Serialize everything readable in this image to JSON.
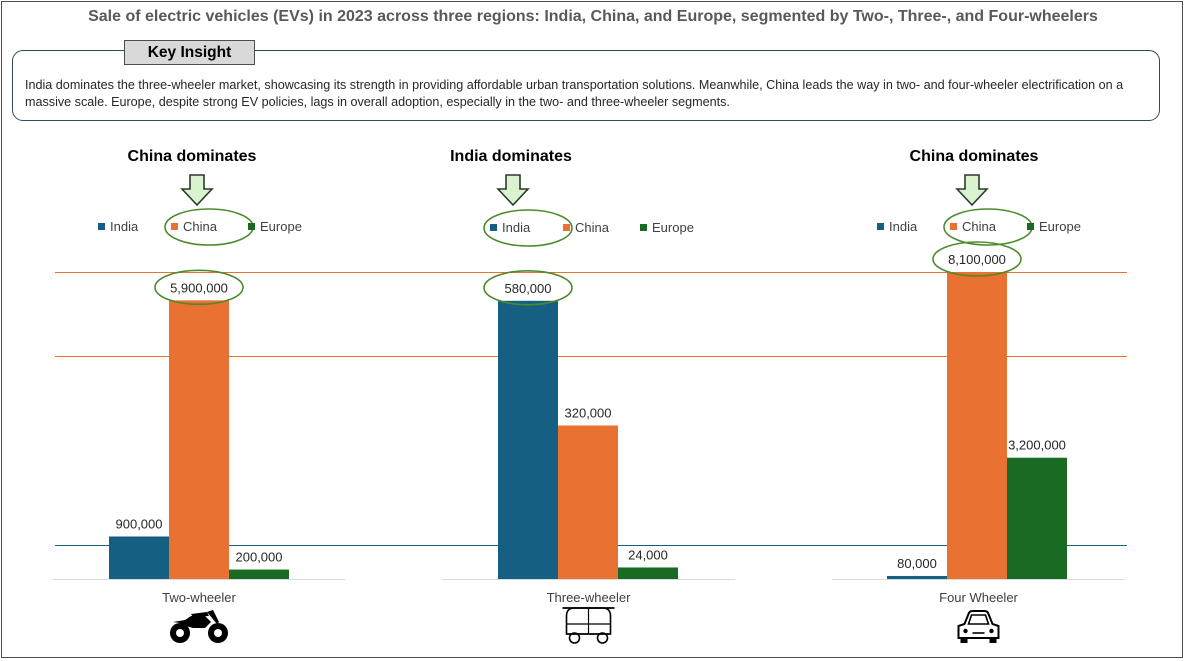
{
  "title": "Sale of electric vehicles (EVs) in 2023 across three regions: India, China, and Europe, segmented by Two-, Three-, and Four-wheelers",
  "insight": {
    "label": "Key Insight",
    "text": "India dominates the three-wheeler market, showcasing its strength in providing affordable urban transportation solutions. Meanwhile, China leads the way in two- and four-wheeler electrification on a massive scale. Europe, despite strong EV policies, lags in overall adoption, especially in the two- and three-wheeler segments."
  },
  "colors": {
    "India": "#156082",
    "China": "#e97132",
    "Europe": "#196b24",
    "highlight": "#4e8a2c",
    "arrow_fill": "#d9f2d0",
    "reference_orange": "#e97132",
    "reference_blue": "#156082"
  },
  "chart_data": [
    {
      "type": "bar",
      "title": "China dominates",
      "categories": [
        "Two-wheeler"
      ],
      "series": [
        {
          "name": "India",
          "values": [
            900000
          ],
          "label": "900,000"
        },
        {
          "name": "China",
          "values": [
            5900000
          ],
          "label": "5,900,000"
        },
        {
          "name": "Europe",
          "values": [
            200000
          ],
          "label": "200,000"
        }
      ],
      "highlight": "China",
      "icon": "motorcycle-icon",
      "ylim": [
        0,
        6500000
      ]
    },
    {
      "type": "bar",
      "title": "India dominates",
      "categories": [
        "Three-wheeler"
      ],
      "series": [
        {
          "name": "India",
          "values": [
            580000
          ],
          "label": "580,000"
        },
        {
          "name": "China",
          "values": [
            320000
          ],
          "label": "320,000"
        },
        {
          "name": "Europe",
          "values": [
            24000
          ],
          "label": "24,000"
        }
      ],
      "highlight": "India",
      "icon": "auto-rickshaw-icon",
      "ylim": [
        0,
        640000
      ]
    },
    {
      "type": "bar",
      "title": "China dominates",
      "categories": [
        "Four Wheeler"
      ],
      "series": [
        {
          "name": "India",
          "values": [
            80000
          ],
          "label": "80,000"
        },
        {
          "name": "China",
          "values": [
            8100000
          ],
          "label": "8,100,000"
        },
        {
          "name": "Europe",
          "values": [
            3200000
          ],
          "label": "3,200,000"
        }
      ],
      "highlight": "China",
      "icon": "car-icon",
      "ylim": [
        0,
        8100000
      ]
    }
  ]
}
